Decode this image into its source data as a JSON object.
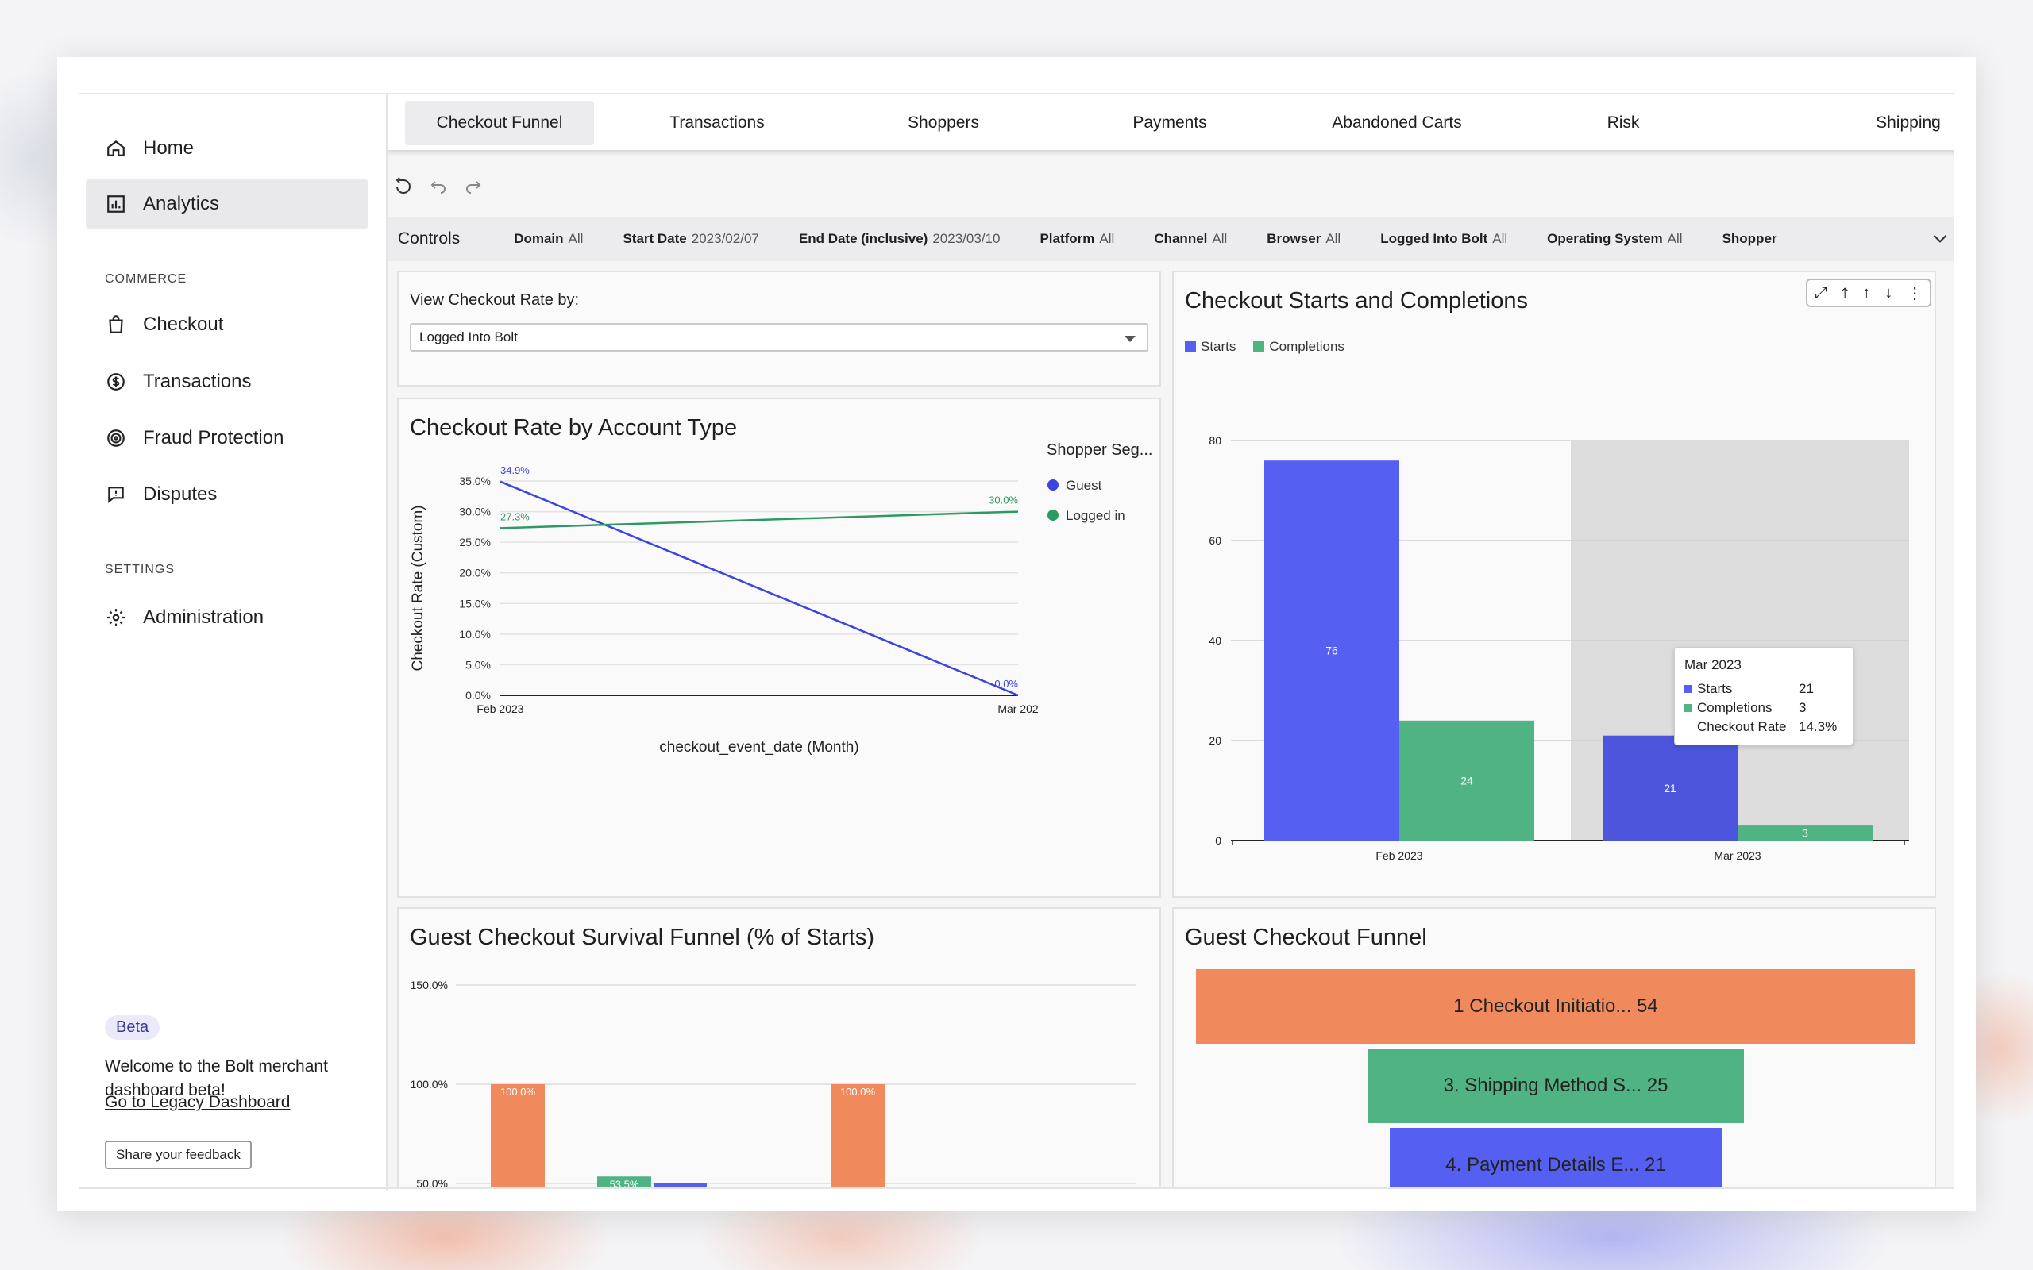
{
  "sidebar": {
    "home": "Home",
    "analytics": "Analytics",
    "commerce_label": "COMMERCE",
    "checkout": "Checkout",
    "transactions": "Transactions",
    "fraud": "Fraud Protection",
    "disputes": "Disputes",
    "settings_label": "SETTINGS",
    "administration": "Administration",
    "beta": "Beta",
    "welcome": "Welcome to the Bolt merchant dashboard beta!",
    "legacy_link": "Go to Legacy Dashboard",
    "feedback": "Share your feedback"
  },
  "tabs": [
    "Checkout Funnel",
    "Transactions",
    "Shoppers",
    "Payments",
    "Abandoned Carts",
    "Risk",
    "Shipping"
  ],
  "more": "···",
  "controls": {
    "label": "Controls",
    "filters": [
      {
        "name": "Domain",
        "value": "All"
      },
      {
        "name": "Start Date",
        "value": "2023/02/07"
      },
      {
        "name": "End Date (inclusive)",
        "value": "2023/03/10"
      },
      {
        "name": "Platform",
        "value": "All"
      },
      {
        "name": "Channel",
        "value": "All"
      },
      {
        "name": "Browser",
        "value": "All"
      },
      {
        "name": "Logged Into Bolt",
        "value": "All"
      },
      {
        "name": "Operating System",
        "value": "All"
      },
      {
        "name": "Shopper",
        "value": ""
      }
    ]
  },
  "view_by": {
    "label": "View Checkout Rate by:",
    "value": "Logged Into Bolt"
  },
  "rate_panel": {
    "title": "Checkout Rate by Account Type"
  },
  "starts_panel": {
    "title": "Checkout Starts and Completions"
  },
  "survival_panel": {
    "title": "Guest Checkout Survival Funnel (% of Starts)"
  },
  "funnel_panel": {
    "title": "Guest Checkout Funnel",
    "bars": [
      {
        "label": "1 Checkout Initiatio... 54",
        "color": "#f08a5d"
      },
      {
        "label": "3. Shipping Method S... 25",
        "color": "#4fb384"
      },
      {
        "label": "4. Payment Details E... 21",
        "color": "#5560f2"
      }
    ]
  },
  "tooltip": {
    "title": "Mar 2023",
    "rows": [
      {
        "label": "Starts",
        "value": "21",
        "color": "#5560f2"
      },
      {
        "label": "Completions",
        "value": "3",
        "color": "#4fb384"
      },
      {
        "label": "Checkout Rate",
        "value": "14.3%",
        "color": ""
      }
    ]
  },
  "chart_data": [
    {
      "type": "line",
      "title": "Checkout Rate by Account Type",
      "xlabel": "checkout_event_date (Month)",
      "ylabel": "Checkout Rate (Custom)",
      "x": [
        "Feb 2023",
        "Mar 202"
      ],
      "ylim": [
        0,
        35
      ],
      "yticks": [
        "0.0%",
        "5.0%",
        "10.0%",
        "15.0%",
        "20.0%",
        "25.0%",
        "30.0%",
        "35.0%"
      ],
      "legend_title": "Shopper Seg...",
      "legend_position": "right",
      "series": [
        {
          "name": "Guest",
          "color": "#3b44e0",
          "values": [
            34.9,
            0.0
          ],
          "labels": [
            "34.9%",
            "0.0%"
          ]
        },
        {
          "name": "Logged in",
          "color": "#2e9a63",
          "values": [
            27.3,
            30.0
          ],
          "labels": [
            "27.3%",
            "30.0%"
          ]
        }
      ]
    },
    {
      "type": "bar",
      "title": "Checkout Starts and Completions",
      "categories": [
        "Feb 2023",
        "Mar 2023"
      ],
      "ylim": [
        0,
        80
      ],
      "yticks": [
        "0",
        "20",
        "40",
        "60",
        "80"
      ],
      "legend_position": "top-left",
      "series": [
        {
          "name": "Starts",
          "color": "#5560f2",
          "values": [
            76,
            21
          ]
        },
        {
          "name": "Completions",
          "color": "#4fb384",
          "values": [
            24,
            3
          ]
        }
      ]
    },
    {
      "type": "bar",
      "title": "Guest Checkout Survival Funnel (% of Starts)",
      "yticks": [
        "50.0%",
        "100.0%",
        "150.0%"
      ],
      "ylim": [
        50,
        150
      ],
      "bars": [
        {
          "value": 100.0,
          "label": "100.0%",
          "color": "#f08a5d"
        },
        {
          "value": 53.5,
          "label": "53.5%",
          "color": "#4fb384"
        },
        {
          "value": 50.0,
          "label": "",
          "color": "#5560f2"
        },
        {
          "value": 100.0,
          "label": "100.0%",
          "color": "#f08a5d"
        }
      ]
    }
  ]
}
